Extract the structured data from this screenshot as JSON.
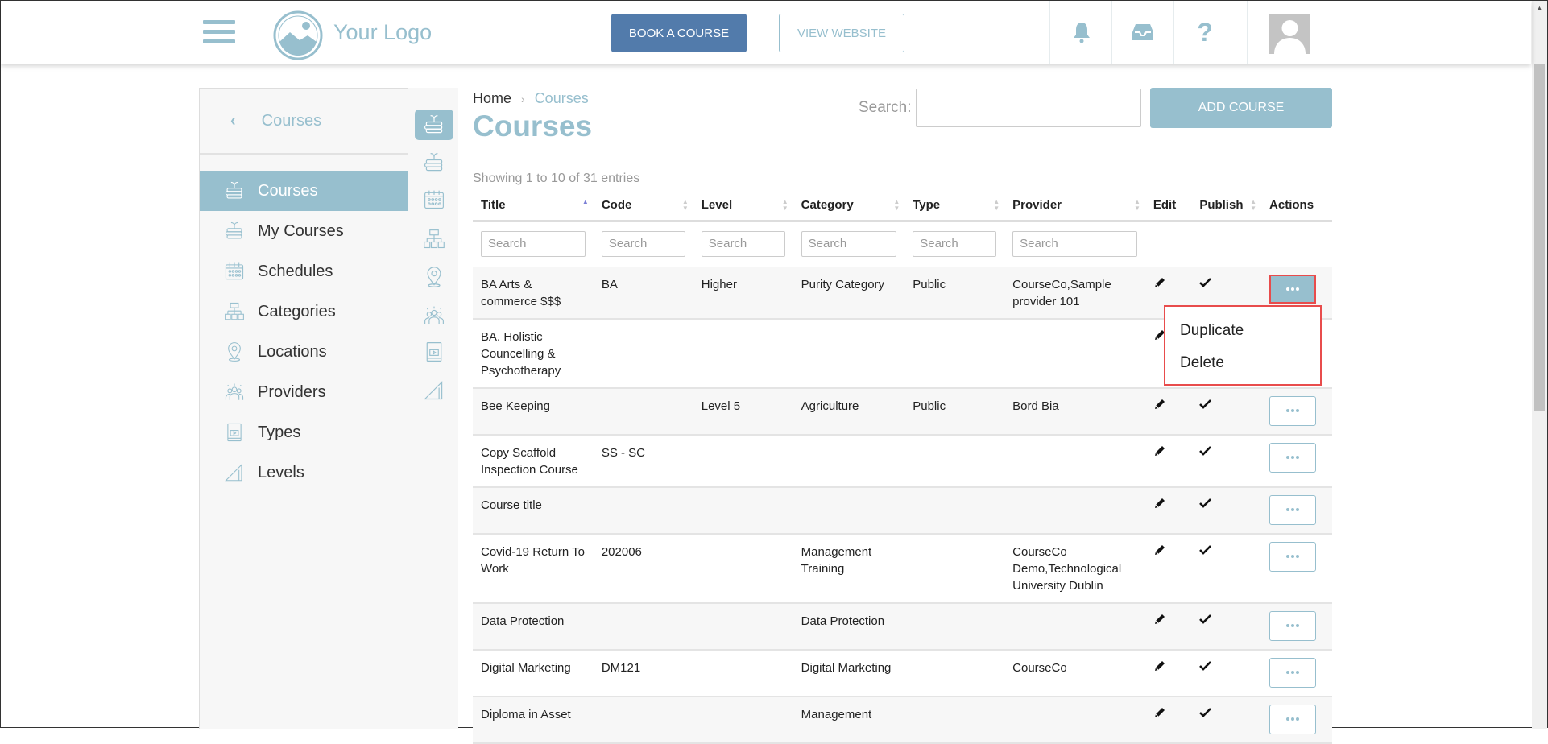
{
  "header": {
    "logo_text": "Your Logo",
    "book_label": "BOOK A COURSE",
    "view_label": "VIEW WEBSITE"
  },
  "sidebar": {
    "back_title": "Courses",
    "items": [
      {
        "label": "Courses",
        "icon": "courses-icon",
        "active": true
      },
      {
        "label": "My Courses",
        "icon": "my-courses-icon"
      },
      {
        "label": "Schedules",
        "icon": "calendar-icon"
      },
      {
        "label": "Categories",
        "icon": "hierarchy-icon"
      },
      {
        "label": "Locations",
        "icon": "location-pin-icon"
      },
      {
        "label": "Providers",
        "icon": "people-icon"
      },
      {
        "label": "Types",
        "icon": "book-video-icon"
      },
      {
        "label": "Levels",
        "icon": "ruler-triangle-icon"
      }
    ]
  },
  "breadcrumb": {
    "home": "Home",
    "current": "Courses"
  },
  "page_title": "Courses",
  "search": {
    "label": "Search:",
    "value": ""
  },
  "add_label": "ADD COURSE",
  "showing": "Showing 1 to 10 of 31 entries",
  "table": {
    "columns": [
      "Title",
      "Code",
      "Level",
      "Category",
      "Type",
      "Provider",
      "Edit",
      "Publish",
      "Actions"
    ],
    "filter_placeholder": "Search",
    "rows": [
      [
        "BA Arts & commerce $$$",
        "BA",
        "Higher",
        "Purity Category",
        "Public",
        "CourseCo,Sample provider 101"
      ],
      [
        "BA. Holistic Councelling & Psychotherapy",
        "",
        "",
        "",
        "",
        ""
      ],
      [
        "Bee Keeping",
        "",
        "Level 5",
        "Agriculture",
        "Public",
        "Bord Bia"
      ],
      [
        "Copy Scaffold Inspection Course",
        "SS - SC",
        "",
        "",
        "",
        ""
      ],
      [
        "Course title",
        "",
        "",
        "",
        "",
        ""
      ],
      [
        "Covid-19 Return To Work",
        "202006",
        "",
        "Management Training",
        "",
        "CourseCo Demo,Technological University Dublin"
      ],
      [
        "Data Protection",
        "",
        "",
        "Data Protection",
        "",
        ""
      ],
      [
        "Digital Marketing",
        "DM121",
        "",
        "Digital Marketing",
        "",
        "CourseCo"
      ],
      [
        "Diploma in Asset",
        "",
        "",
        "Management",
        "",
        ""
      ]
    ]
  },
  "actions_menu": {
    "items": [
      "Duplicate",
      "Delete"
    ]
  },
  "colors": {
    "accent": "#97bfce",
    "primary": "#527bab",
    "highlight": "#e84c4c"
  }
}
